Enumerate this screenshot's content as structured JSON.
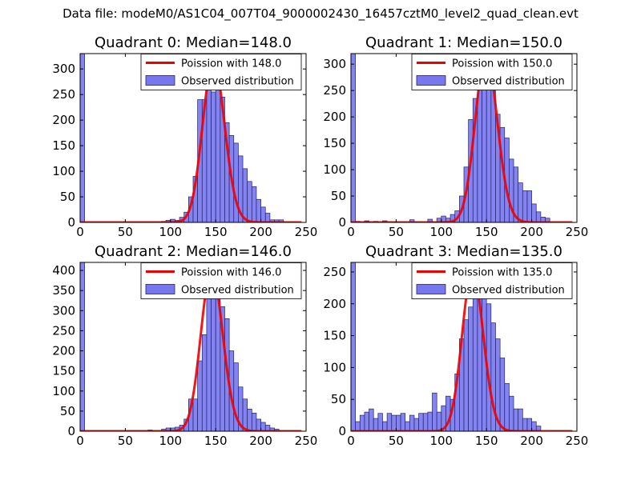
{
  "figure_title": "Data file: modeM0/AS1C04_007T04_9000002430_16457cztM0_level2_quad_clean.evt",
  "colors": {
    "hist_fill": "#7777ee",
    "hist_edge": "#22226f",
    "poisson": "#ee0000",
    "background": "#ffffff"
  },
  "chart_data": [
    {
      "type": "bar",
      "title": "Quadrant 0: Median=148.0",
      "median": 148.0,
      "xlim": [
        0,
        250
      ],
      "ylim": [
        0,
        330
      ],
      "xticks": [
        "0",
        "50",
        "100",
        "150",
        "200",
        "250"
      ],
      "yticks": [
        "0",
        "50",
        "100",
        "150",
        "200",
        "250",
        "300"
      ],
      "bin_width": 5,
      "bins": [
        [
          0,
          330
        ],
        [
          90,
          2
        ],
        [
          95,
          4
        ],
        [
          100,
          6
        ],
        [
          105,
          4
        ],
        [
          110,
          10
        ],
        [
          115,
          20
        ],
        [
          120,
          50
        ],
        [
          125,
          90
        ],
        [
          130,
          240
        ],
        [
          135,
          240
        ],
        [
          140,
          275
        ],
        [
          145,
          255
        ],
        [
          150,
          280
        ],
        [
          155,
          245
        ],
        [
          160,
          195
        ],
        [
          165,
          170
        ],
        [
          170,
          155
        ],
        [
          175,
          130
        ],
        [
          180,
          105
        ],
        [
          185,
          80
        ],
        [
          190,
          70
        ],
        [
          195,
          45
        ],
        [
          200,
          30
        ],
        [
          205,
          18
        ],
        [
          210,
          5
        ],
        [
          215,
          5
        ],
        [
          220,
          5
        ]
      ],
      "legend": [
        "Poission with 148.0",
        "Observed distribution"
      ],
      "poisson_curve": {
        "mean": 148.0,
        "peak": 315,
        "range": [
          0,
          245
        ]
      }
    },
    {
      "type": "bar",
      "title": "Quadrant 1: Median=150.0",
      "median": 150.0,
      "xlim": [
        0,
        250
      ],
      "ylim": [
        0,
        320
      ],
      "xticks": [
        "0",
        "50",
        "100",
        "150",
        "200",
        "250"
      ],
      "yticks": [
        "0",
        "50",
        "100",
        "150",
        "200",
        "250",
        "300"
      ],
      "bin_width": 5,
      "bins": [
        [
          0,
          320
        ],
        [
          5,
          2
        ],
        [
          15,
          3
        ],
        [
          25,
          2
        ],
        [
          35,
          3
        ],
        [
          65,
          5
        ],
        [
          85,
          6
        ],
        [
          95,
          8
        ],
        [
          100,
          12
        ],
        [
          105,
          8
        ],
        [
          110,
          15
        ],
        [
          115,
          22
        ],
        [
          120,
          50
        ],
        [
          125,
          105
        ],
        [
          130,
          195
        ],
        [
          135,
          235
        ],
        [
          140,
          275
        ],
        [
          145,
          265
        ],
        [
          150,
          290
        ],
        [
          155,
          280
        ],
        [
          160,
          205
        ],
        [
          165,
          180
        ],
        [
          170,
          160
        ],
        [
          175,
          120
        ],
        [
          180,
          105
        ],
        [
          185,
          75
        ],
        [
          190,
          60
        ],
        [
          195,
          60
        ],
        [
          200,
          35
        ],
        [
          205,
          20
        ],
        [
          210,
          10
        ],
        [
          215,
          8
        ]
      ],
      "legend": [
        "Poission with 150.0",
        "Observed distribution"
      ],
      "poisson_curve": {
        "mean": 150.0,
        "peak": 318,
        "range": [
          0,
          245
        ]
      }
    },
    {
      "type": "bar",
      "title": "Quadrant 2: Median=146.0",
      "median": 146.0,
      "xlim": [
        0,
        250
      ],
      "ylim": [
        0,
        420
      ],
      "xticks": [
        "0",
        "50",
        "100",
        "150",
        "200",
        "250"
      ],
      "yticks": [
        "0",
        "50",
        "100",
        "150",
        "200",
        "250",
        "300",
        "350",
        "400"
      ],
      "bin_width": 5,
      "bins": [
        [
          0,
          420
        ],
        [
          75,
          3
        ],
        [
          90,
          5
        ],
        [
          95,
          8
        ],
        [
          100,
          8
        ],
        [
          105,
          10
        ],
        [
          110,
          15
        ],
        [
          115,
          30
        ],
        [
          120,
          80
        ],
        [
          125,
          80
        ],
        [
          130,
          175
        ],
        [
          135,
          240
        ],
        [
          140,
          350
        ],
        [
          145,
          395
        ],
        [
          150,
          360
        ],
        [
          155,
          310
        ],
        [
          160,
          280
        ],
        [
          165,
          200
        ],
        [
          170,
          170
        ],
        [
          175,
          110
        ],
        [
          180,
          80
        ],
        [
          185,
          55
        ],
        [
          190,
          45
        ],
        [
          195,
          30
        ],
        [
          200,
          22
        ],
        [
          205,
          15
        ],
        [
          210,
          8
        ],
        [
          215,
          5
        ]
      ],
      "legend": [
        "Poission with 146.0",
        "Observed distribution"
      ],
      "poisson_curve": {
        "mean": 146.0,
        "peak": 400,
        "range": [
          0,
          245
        ]
      }
    },
    {
      "type": "bar",
      "title": "Quadrant 3: Median=135.0",
      "median": 135.0,
      "xlim": [
        0,
        250
      ],
      "ylim": [
        0,
        265
      ],
      "xticks": [
        "0",
        "50",
        "100",
        "150",
        "200",
        "250"
      ],
      "yticks": [
        "0",
        "50",
        "100",
        "150",
        "200",
        "250"
      ],
      "bin_width": 5,
      "bins": [
        [
          0,
          265
        ],
        [
          5,
          15
        ],
        [
          10,
          25
        ],
        [
          15,
          30
        ],
        [
          20,
          35
        ],
        [
          25,
          20
        ],
        [
          30,
          28
        ],
        [
          35,
          15
        ],
        [
          40,
          28
        ],
        [
          45,
          25
        ],
        [
          50,
          25
        ],
        [
          55,
          28
        ],
        [
          60,
          15
        ],
        [
          65,
          25
        ],
        [
          70,
          20
        ],
        [
          75,
          28
        ],
        [
          80,
          28
        ],
        [
          85,
          30
        ],
        [
          90,
          60
        ],
        [
          95,
          30
        ],
        [
          100,
          40
        ],
        [
          105,
          55
        ],
        [
          110,
          50
        ],
        [
          115,
          90
        ],
        [
          120,
          145
        ],
        [
          125,
          175
        ],
        [
          130,
          195
        ],
        [
          135,
          240
        ],
        [
          140,
          210
        ],
        [
          145,
          255
        ],
        [
          150,
          200
        ],
        [
          155,
          170
        ],
        [
          160,
          145
        ],
        [
          165,
          115
        ],
        [
          170,
          75
        ],
        [
          175,
          55
        ],
        [
          180,
          35
        ],
        [
          185,
          35
        ],
        [
          190,
          20
        ],
        [
          195,
          20
        ],
        [
          200,
          15
        ],
        [
          205,
          8
        ]
      ],
      "legend": [
        "Poission with 135.0",
        "Observed distribution"
      ],
      "poisson_curve": {
        "mean": 135.0,
        "peak": 252,
        "range": [
          0,
          245
        ]
      }
    }
  ]
}
